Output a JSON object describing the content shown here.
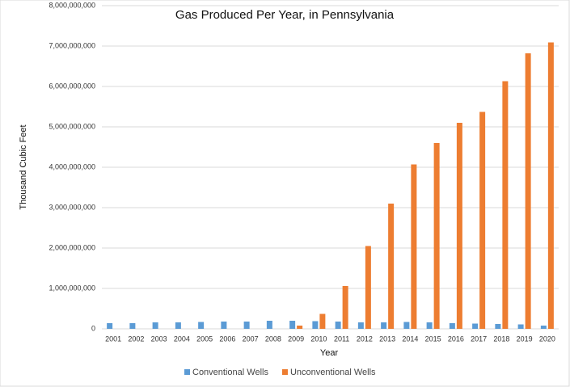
{
  "chart_data": {
    "type": "bar",
    "title": "Gas Produced Per Year, in Pennsylvania",
    "x_label": "Year",
    "y_label": "Thousand  Cubic Feet",
    "categories": [
      "2001",
      "2002",
      "2003",
      "2004",
      "2005",
      "2006",
      "2007",
      "2008",
      "2009",
      "2010",
      "2011",
      "2012",
      "2013",
      "2014",
      "2015",
      "2016",
      "2017",
      "2018",
      "2019",
      "2020"
    ],
    "series": [
      {
        "name": "Conventional Wells",
        "color": "#5b9bd5",
        "values": [
          140000000,
          140000000,
          160000000,
          160000000,
          170000000,
          180000000,
          180000000,
          200000000,
          200000000,
          190000000,
          180000000,
          160000000,
          160000000,
          170000000,
          160000000,
          140000000,
          130000000,
          120000000,
          110000000,
          80000000
        ]
      },
      {
        "name": "Unconventional Wells",
        "color": "#ed7d31",
        "values": [
          0,
          0,
          0,
          0,
          0,
          0,
          0,
          0,
          80000000,
          370000000,
          1060000000,
          2050000000,
          3100000000,
          4070000000,
          4600000000,
          5100000000,
          5370000000,
          6130000000,
          6820000000,
          7090000000
        ]
      }
    ],
    "ylim": [
      0,
      8000000000
    ],
    "yticks": [
      0,
      {
        "value": 1000000000,
        "label": "1,000,000,000"
      },
      {
        "value": 2000000000,
        "label": "2,000,000,000"
      },
      {
        "value": 3000000000,
        "label": "3,000,000,000"
      },
      {
        "value": 4000000000,
        "label": "4,000,000,000"
      },
      {
        "value": 5000000000,
        "label": "5,000,000,000"
      },
      {
        "value": 6000000000,
        "label": "6,000,000,000"
      },
      {
        "value": 7000000000,
        "label": "7,000,000,000"
      },
      {
        "value": 8000000000,
        "label": "8,000,000,000"
      }
    ],
    "grid": true,
    "legend": "bottom"
  }
}
